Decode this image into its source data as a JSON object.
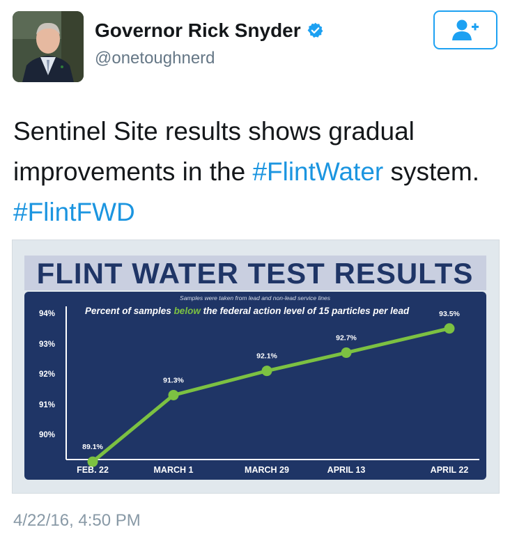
{
  "author": {
    "display_name": "Governor Rick Snyder",
    "handle": "@onetoughnerd",
    "verified": true,
    "avatar_icon": "person-photo"
  },
  "follow_button": {
    "icon": "add-user-icon",
    "color": "#1da1f2"
  },
  "tweet": {
    "text_part1": "Sentinel Site results shows gradual improvements in the ",
    "hashtag1": "#FlintWater",
    "text_part2": " system. ",
    "hashtag2": "#FlintFWD",
    "timestamp": "4/22/16, 4:50 PM"
  },
  "colors": {
    "hashtag": "#1b95e0",
    "chart_background": "#1f3566",
    "title_band": "#c9cfe0",
    "title_text": "#1f3566",
    "line": "#7cc142"
  },
  "chart_data": {
    "type": "line",
    "title": "FLINT WATER TEST RESULTS",
    "note": "Samples were taken from lead and non-lead service lines",
    "subtitle_before": "Percent of samples ",
    "subtitle_highlight": "below",
    "subtitle_after": " the federal action level of 15 particles per lead",
    "categories": [
      "FEB. 22",
      "MARCH 1",
      "MARCH 29",
      "APRIL 13",
      "APRIL 22"
    ],
    "values": [
      89.1,
      91.3,
      92.1,
      92.7,
      93.5
    ],
    "data_labels": [
      "89.1%",
      "91.3%",
      "92.1%",
      "92.7%",
      "93.5%"
    ],
    "y_ticks": [
      90,
      91,
      92,
      93,
      94
    ],
    "y_tick_labels": [
      "90%",
      "91%",
      "92%",
      "93%",
      "94%"
    ],
    "ylim": [
      89.1,
      94
    ],
    "grid": false
  }
}
